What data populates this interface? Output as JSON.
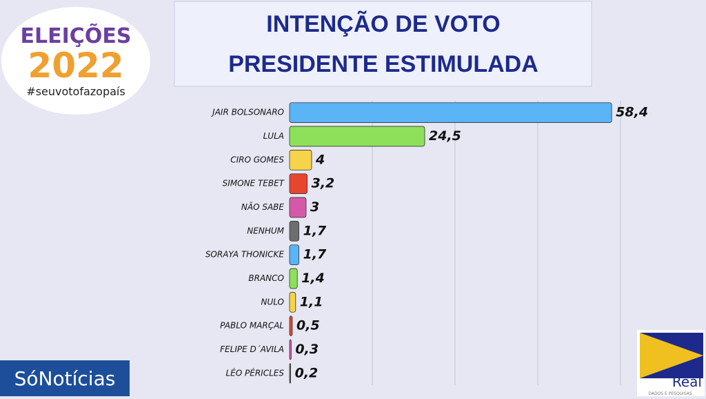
{
  "chart_data": {
    "type": "bar",
    "orientation": "horizontal",
    "title": [
      "INTENÇÃO DE VOTO",
      "PRESIDENTE ESTIMULADA"
    ],
    "categories": [
      "JAIR BOLSONARO",
      "LULA",
      "CIRO GOMES",
      "SIMONE TEBET",
      "NÃO SABE",
      "NENHUM",
      "SORAYA THONICKE",
      "BRANCO",
      "NULO",
      "PABLO MARÇAL",
      "FELIPE D´AVILA",
      "LÉO PÉRICLES"
    ],
    "values": [
      58.4,
      24.5,
      4,
      3.2,
      3,
      1.7,
      1.7,
      1.4,
      1.1,
      0.5,
      0.3,
      0.2
    ],
    "value_labels": [
      "58,4",
      "24,5",
      "4",
      "3,2",
      "3",
      "1,7",
      "1,7",
      "1,4",
      "1,1",
      "0,5",
      "0,3",
      "0,2"
    ],
    "colors": [
      "#5ab4f5",
      "#8ee05a",
      "#f5d44a",
      "#e8452e",
      "#d45aa8",
      "#6e6e6e",
      "#5ab4f5",
      "#8ee05a",
      "#f5d44a",
      "#e8452e",
      "#d45aa8",
      "#6e6e6e"
    ],
    "xlim": [
      0,
      60
    ],
    "xticks": [
      15,
      30,
      45,
      60
    ],
    "grid": true
  },
  "logos": {
    "elections": [
      "ELEIÇÕES",
      "2022",
      "#seuvotofazopaís"
    ],
    "news": "SóNotícias",
    "pollster": "Real",
    "pollster_tagline": "DADOS E PESQUISAS"
  }
}
